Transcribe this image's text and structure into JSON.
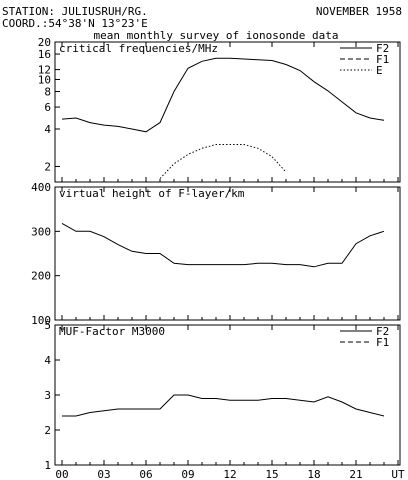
{
  "header": {
    "station": "STATION: JULIUSRUH/RG.",
    "date": "NOVEMBER 1958",
    "coord": "COORD.:54°38'N 13°23'E",
    "subtitle": "mean monthly survey of ionosonde data"
  },
  "chart_data": [
    {
      "type": "line",
      "title": "critical frequencies/MHz",
      "yscale": "log",
      "ylim": [
        1.5,
        20
      ],
      "yticks": [
        2,
        4,
        6,
        8,
        10,
        12,
        16,
        20
      ],
      "xlim": [
        0,
        24
      ],
      "legend": "top-right",
      "series": [
        {
          "name": "F2",
          "style": "solid",
          "x": [
            0,
            1,
            2,
            3,
            4,
            5,
            6,
            7,
            8,
            9,
            10,
            11,
            12,
            13,
            14,
            15,
            16,
            17,
            18,
            19,
            20,
            21,
            22,
            23
          ],
          "values": [
            4.8,
            4.9,
            4.5,
            4.3,
            4.2,
            4.0,
            3.8,
            4.5,
            8.0,
            12.3,
            14.0,
            14.8,
            14.8,
            14.6,
            14.4,
            14.2,
            13.2,
            11.8,
            9.6,
            8.1,
            6.6,
            5.4,
            4.9,
            4.7
          ]
        },
        {
          "name": "F1",
          "style": "dashed",
          "x": [],
          "values": []
        },
        {
          "name": "E",
          "style": "dotted",
          "x": [
            7,
            8,
            9,
            10,
            11,
            12,
            13,
            14,
            15,
            16
          ],
          "values": [
            1.6,
            2.1,
            2.5,
            2.8,
            3.0,
            3.0,
            3.0,
            2.8,
            2.4,
            1.8
          ]
        }
      ]
    },
    {
      "type": "line",
      "title": "virtual height of F-layer/km",
      "ylim": [
        100,
        400
      ],
      "yticks": [
        100,
        200,
        300,
        400
      ],
      "xlim": [
        0,
        24
      ],
      "series": [
        {
          "style": "solid",
          "x": [
            0,
            1,
            2,
            3,
            4,
            5,
            6,
            7,
            8,
            9,
            10,
            11,
            12,
            13,
            14,
            15,
            16,
            17,
            18,
            19,
            20,
            21,
            22,
            23
          ],
          "values": [
            318,
            300,
            300,
            288,
            270,
            255,
            250,
            250,
            228,
            225,
            225,
            225,
            225,
            225,
            228,
            228,
            225,
            225,
            220,
            228,
            228,
            272,
            290,
            300
          ]
        }
      ]
    },
    {
      "type": "line",
      "title": "MUF-Factor M3000",
      "ylim": [
        1,
        5
      ],
      "yticks": [
        1,
        2,
        3,
        4,
        5
      ],
      "xlim": [
        0,
        24
      ],
      "xticks": [
        "00",
        "03",
        "06",
        "09",
        "12",
        "15",
        "18",
        "21",
        "UT"
      ],
      "legend": "top-right",
      "series": [
        {
          "name": "F2",
          "style": "solid",
          "x": [
            0,
            1,
            2,
            3,
            4,
            5,
            6,
            7,
            8,
            9,
            10,
            11,
            12,
            13,
            14,
            15,
            16,
            17,
            18,
            19,
            20,
            21,
            22,
            23
          ],
          "values": [
            2.4,
            2.4,
            2.5,
            2.55,
            2.6,
            2.6,
            2.6,
            2.6,
            3.0,
            3.0,
            2.9,
            2.9,
            2.85,
            2.85,
            2.85,
            2.9,
            2.9,
            2.85,
            2.8,
            2.95,
            2.8,
            2.6,
            2.5,
            2.4
          ]
        },
        {
          "name": "F1",
          "style": "dashed",
          "x": [],
          "values": []
        }
      ]
    }
  ]
}
